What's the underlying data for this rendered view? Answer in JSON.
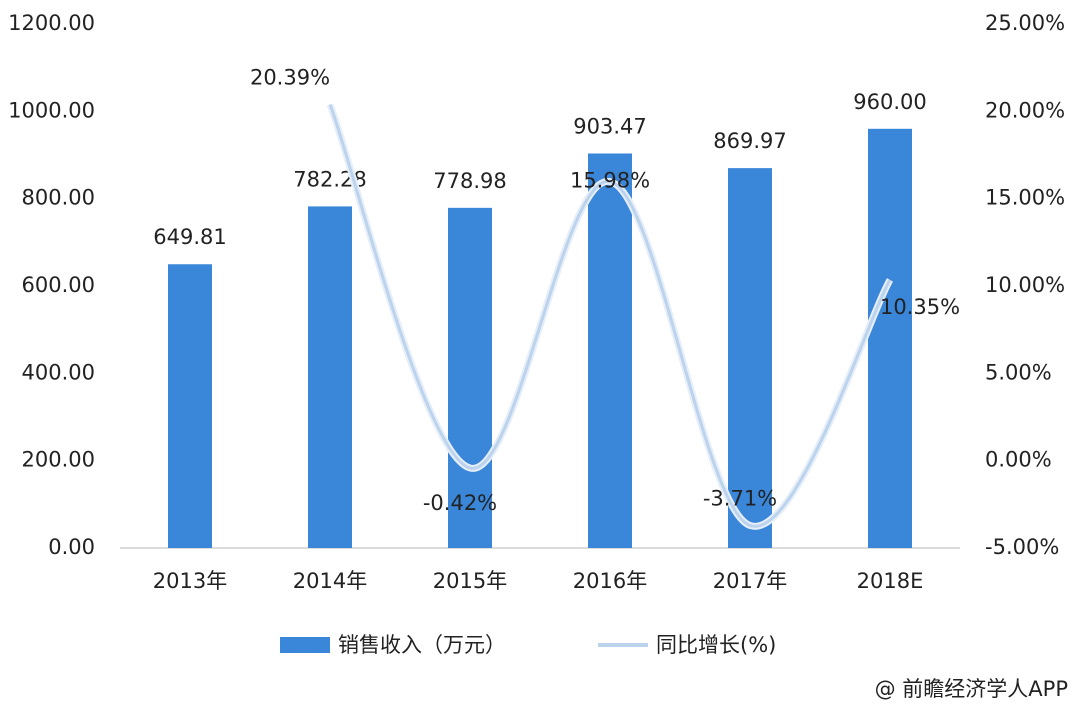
{
  "chart_data": {
    "type": "combo",
    "categories": [
      "2013年",
      "2014年",
      "2015年",
      "2016年",
      "2017年",
      "2018E"
    ],
    "series": [
      {
        "name": "销售收入（万元）",
        "type": "bar",
        "color": "#3a86d9",
        "values": [
          649.81,
          782.28,
          778.98,
          903.47,
          869.97,
          960.0
        ],
        "value_labels": [
          "649.81",
          "782.28",
          "778.98",
          "903.47",
          "869.97",
          "960.00"
        ]
      },
      {
        "name": "同比增长(%)",
        "type": "line",
        "axis": "y2",
        "color": "#bcd3ee",
        "values": [
          null,
          20.39,
          -0.42,
          15.98,
          -3.71,
          10.35
        ],
        "value_labels": [
          null,
          "20.39%",
          "-0.42%",
          "15.98%",
          "-3.71%",
          "10.35%"
        ]
      }
    ],
    "ylim": [
      0,
      1200
    ],
    "yticks": [
      {
        "value": 0,
        "label": "0.00"
      },
      {
        "value": 200,
        "label": "200.00"
      },
      {
        "value": 400,
        "label": "400.00"
      },
      {
        "value": 600,
        "label": "600.00"
      },
      {
        "value": 800,
        "label": "800.00"
      },
      {
        "value": 1000,
        "label": "1000.00"
      },
      {
        "value": 1200,
        "label": "1200.00"
      }
    ],
    "y2lim": [
      -5,
      25
    ],
    "y2ticks": [
      {
        "value": -5,
        "label": "-5.00%"
      },
      {
        "value": 0,
        "label": "0.00%"
      },
      {
        "value": 5,
        "label": "5.00%"
      },
      {
        "value": 10,
        "label": "10.00%"
      },
      {
        "value": 15,
        "label": "15.00%"
      },
      {
        "value": 20,
        "label": "20.00%"
      },
      {
        "value": 25,
        "label": "25.00%"
      }
    ],
    "source": "@ 前瞻经济学人APP"
  }
}
